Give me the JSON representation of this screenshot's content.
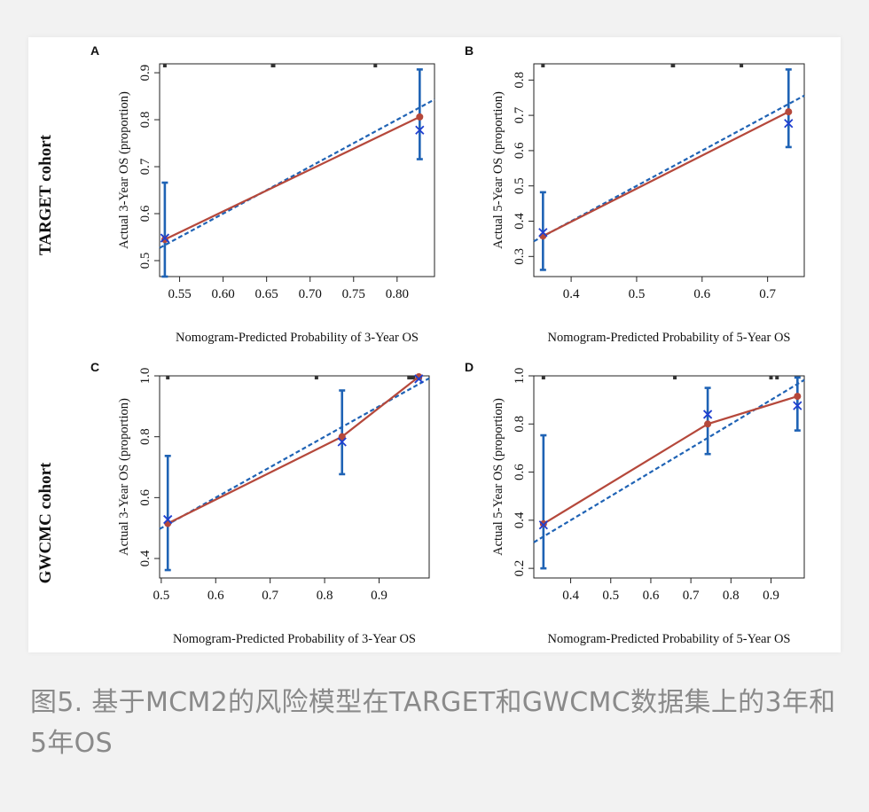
{
  "figure": {
    "cohort_labels": [
      "TARGET cohort",
      "GWCMC cohort"
    ]
  },
  "caption": {
    "text": "图5.   基于MCM2的风险模型在TARGET和GWCMC数据集上的3年和5年OS"
  },
  "colors": {
    "observed_line": "#b5483b",
    "ideal_line": "#1f63b5",
    "error_bar": "#1f63b5",
    "bias_corrected_marker": "#1f3fd0"
  },
  "chart_data": [
    {
      "type": "line",
      "panel": "A",
      "xlabel": "Nomogram-Predicted Probability of 3-Year OS",
      "ylabel": "Actual 3-Year OS (proportion)",
      "xlim": [
        0.527,
        0.843
      ],
      "ylim": [
        0.466,
        0.919
      ],
      "xticks": [
        "0.55",
        "0.60",
        "0.65",
        "0.70",
        "0.75",
        "0.80"
      ],
      "yticks": [
        "0.5",
        "0.6",
        "0.7",
        "0.8",
        "0.9"
      ],
      "observed": {
        "x": [
          0.533,
          0.826
        ],
        "y": [
          0.545,
          0.806
        ]
      },
      "bias_corrected": {
        "x": [
          0.533,
          0.826
        ],
        "y": [
          0.548,
          0.778
        ]
      },
      "ci_low": [
        0.44,
        0.716
      ],
      "ci_high": [
        0.666,
        0.907
      ],
      "ideal": {
        "x": [
          0.527,
          0.843
        ],
        "y": [
          0.527,
          0.843
        ]
      },
      "rug_top": [
        0.533,
        0.657,
        0.658,
        0.775
      ]
    },
    {
      "type": "line",
      "panel": "B",
      "xlabel": "Nomogram-Predicted Probability of 5-Year OS",
      "ylabel": "Actual 5-Year OS (proportion)",
      "xlim": [
        0.343,
        0.756
      ],
      "ylim": [
        0.243,
        0.846
      ],
      "xticks": [
        "0.4",
        "0.5",
        "0.6",
        "0.7"
      ],
      "yticks": [
        "0.3",
        "0.4",
        "0.5",
        "0.6",
        "0.7",
        "0.8"
      ],
      "observed": {
        "x": [
          0.357,
          0.732
        ],
        "y": [
          0.358,
          0.71
        ]
      },
      "bias_corrected": {
        "x": [
          0.357,
          0.732
        ],
        "y": [
          0.368,
          0.677
        ]
      },
      "ci_low": [
        0.262,
        0.61
      ],
      "ci_high": [
        0.482,
        0.83
      ],
      "ideal": {
        "x": [
          0.343,
          0.756
        ],
        "y": [
          0.343,
          0.756
        ]
      },
      "rug_top": [
        0.357,
        0.555,
        0.556,
        0.66
      ]
    },
    {
      "type": "line",
      "panel": "C",
      "xlabel": "Nomogram-Predicted Probability of 3-Year OS",
      "ylabel": "Actual 3-Year OS (proportion)",
      "xlim": [
        0.497,
        0.992
      ],
      "ylim": [
        0.336,
        1.0
      ],
      "xticks": [
        "0.5",
        "0.6",
        "0.7",
        "0.8",
        "0.9"
      ],
      "yticks": [
        "0.4",
        "0.6",
        "0.8",
        "1.0"
      ],
      "observed": {
        "x": [
          0.512,
          0.832,
          0.973
        ],
        "y": [
          0.515,
          0.8,
          0.997
        ]
      },
      "bias_corrected": {
        "x": [
          0.512,
          0.832,
          0.973
        ],
        "y": [
          0.528,
          0.783,
          0.99
        ]
      },
      "ci_low": [
        0.362,
        0.677,
        0.99
      ],
      "ci_high": [
        0.737,
        0.952,
        1.0
      ],
      "ideal": {
        "x": [
          0.497,
          0.992
        ],
        "y": [
          0.497,
          0.992
        ]
      },
      "rug_top": [
        0.512,
        0.785,
        0.955,
        0.958,
        0.963
      ]
    },
    {
      "type": "line",
      "panel": "D",
      "xlabel": "Nomogram-Predicted Probability of 5-Year OS",
      "ylabel": "Actual 5-Year OS (proportion)",
      "xlim": [
        0.308,
        0.983
      ],
      "ylim": [
        0.16,
        1.0
      ],
      "xticks": [
        "0.4",
        "0.5",
        "0.6",
        "0.7",
        "0.8",
        "0.9"
      ],
      "yticks": [
        "0.2",
        "0.4",
        "0.6",
        "0.8",
        "1.0"
      ],
      "observed": {
        "x": [
          0.332,
          0.742,
          0.966
        ],
        "y": [
          0.385,
          0.8,
          0.915
        ]
      },
      "bias_corrected": {
        "x": [
          0.332,
          0.742,
          0.966
        ],
        "y": [
          0.38,
          0.84,
          0.876
        ]
      },
      "ci_low": [
        0.2,
        0.675,
        0.773
      ],
      "ci_high": [
        0.753,
        0.95,
        0.993
      ],
      "ideal": {
        "x": [
          0.308,
          0.983
        ],
        "y": [
          0.308,
          0.983
        ]
      },
      "rug_top": [
        0.332,
        0.66,
        0.9,
        0.915
      ]
    }
  ]
}
